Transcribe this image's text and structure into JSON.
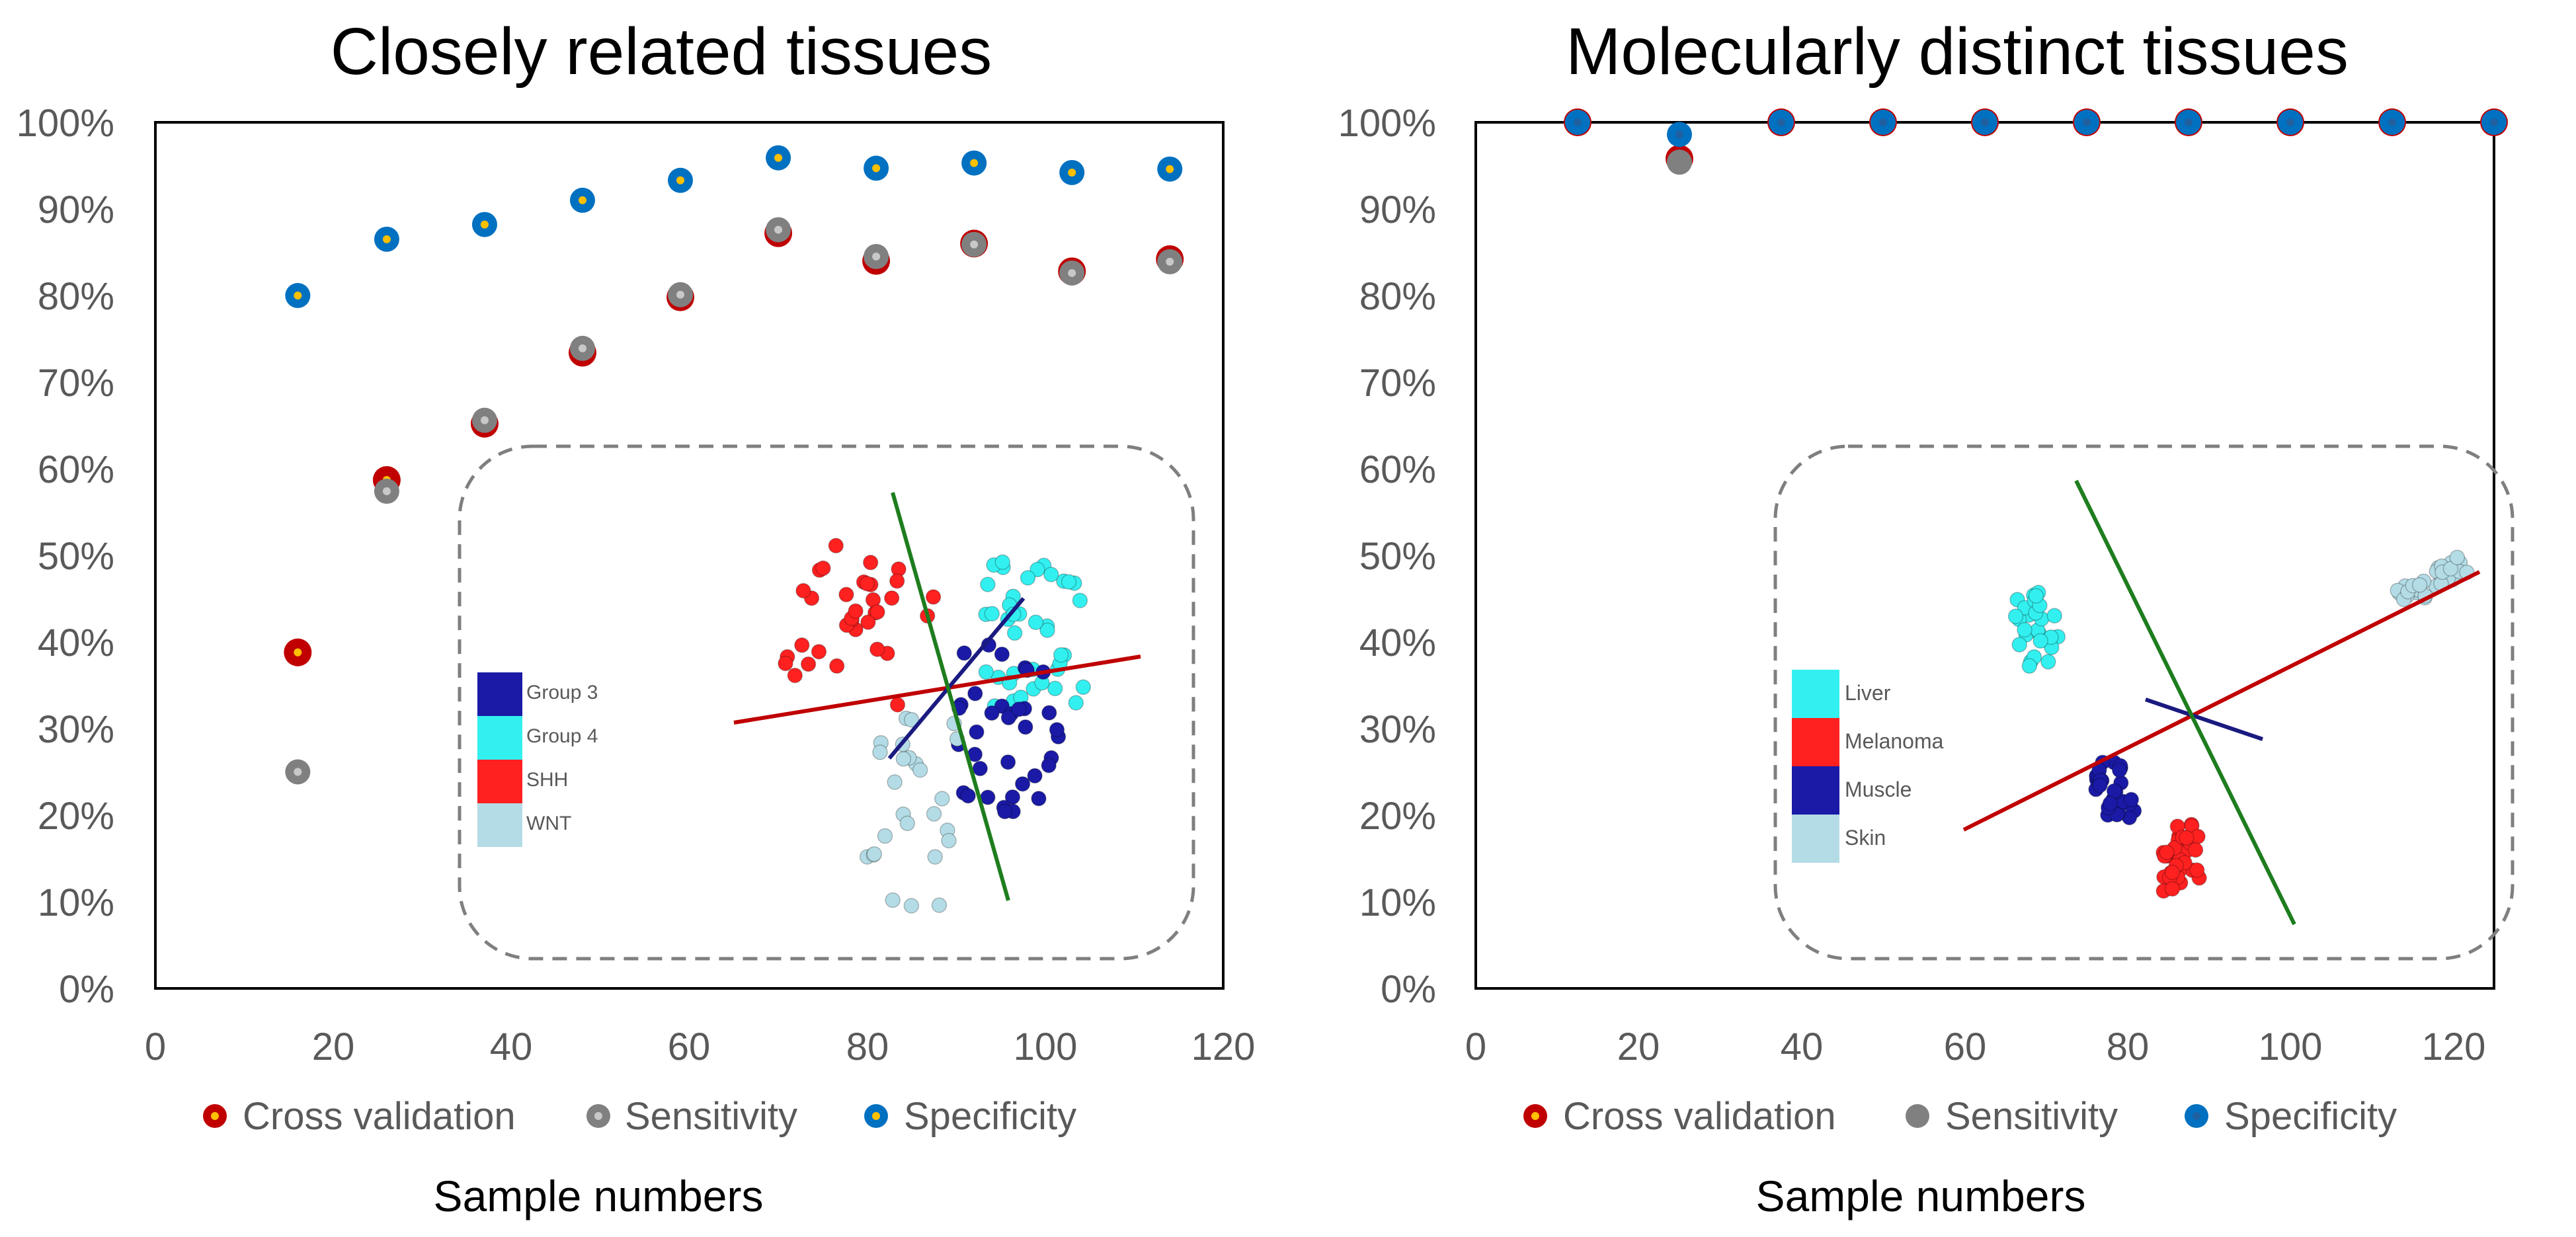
{
  "colors": {
    "cross_validation": "#c00000",
    "sensitivity": "#808080",
    "specificity": "#0070c0",
    "spec_dot": "#ffc000",
    "group3": "#1a1aa6",
    "group4": "#33f0f0",
    "shh": "#ff2020",
    "wnt": "#b4dce6",
    "liver": "#33f0f0",
    "melanoma": "#ff2020",
    "muscle": "#1a1aa6",
    "skin": "#b4dce6",
    "line_red": "#c00000",
    "line_navy": "#1a1a80",
    "line_green": "#1e7d1e"
  },
  "chart_data": [
    {
      "type": "scatter",
      "title": "Closely related tissues",
      "xlabel": "Sample numbers",
      "ylabel": "",
      "xlim": [
        0,
        120
      ],
      "ylim": [
        0,
        100
      ],
      "x_ticks": [
        "0",
        "20",
        "40",
        "60",
        "80",
        "100",
        "120"
      ],
      "y_ticks": [
        "0%",
        "10%",
        "20%",
        "30%",
        "40%",
        "50%",
        "60%",
        "70%",
        "80%",
        "90%",
        "100%"
      ],
      "legend_position": "bottom",
      "x": [
        16,
        26,
        37,
        48,
        59,
        70,
        81,
        92,
        103,
        114
      ],
      "series": [
        {
          "name": "Cross validation",
          "values": [
            38.8,
            58.7,
            65.2,
            73.4,
            79.8,
            87.2,
            84.0,
            86.0,
            82.8,
            84.2
          ]
        },
        {
          "name": "Sensitivity",
          "values": [
            25.0,
            57.4,
            65.6,
            73.9,
            80.1,
            87.6,
            84.5,
            85.9,
            82.6,
            83.9
          ]
        },
        {
          "name": "Specificity",
          "values": [
            80.0,
            86.5,
            88.2,
            91.0,
            93.3,
            95.9,
            94.7,
            95.3,
            94.2,
            94.6
          ]
        }
      ],
      "inset": {
        "legend": [
          "Group 3",
          "Group 4",
          "SHH",
          "WNT"
        ]
      }
    },
    {
      "type": "scatter",
      "title": "Molecularly distinct tissues",
      "xlabel": "Sample numbers",
      "ylabel": "",
      "xlim": [
        0,
        120
      ],
      "ylim": [
        0,
        100
      ],
      "x_ticks": [
        "0",
        "20",
        "40",
        "60",
        "80",
        "100",
        "120"
      ],
      "y_ticks": [
        "0%",
        "10%",
        "20%",
        "30%",
        "40%",
        "50%",
        "60%",
        "70%",
        "80%",
        "90%",
        "100%"
      ],
      "legend_position": "bottom",
      "x": [
        12,
        24,
        36,
        48,
        60,
        72,
        84,
        96,
        108,
        120
      ],
      "series": [
        {
          "name": "Cross validation",
          "values": [
            100,
            95.8,
            100,
            100,
            100,
            100,
            100,
            100,
            100,
            100
          ]
        },
        {
          "name": "Sensitivity",
          "values": [
            100,
            95.4,
            100,
            100,
            100,
            100,
            100,
            100,
            100,
            100
          ]
        },
        {
          "name": "Specificity",
          "values": [
            100,
            98.6,
            100,
            100,
            100,
            100,
            100,
            100,
            100,
            100
          ]
        }
      ],
      "inset": {
        "legend": [
          "Liver",
          "Melanoma",
          "Muscle",
          "Skin"
        ]
      }
    }
  ]
}
